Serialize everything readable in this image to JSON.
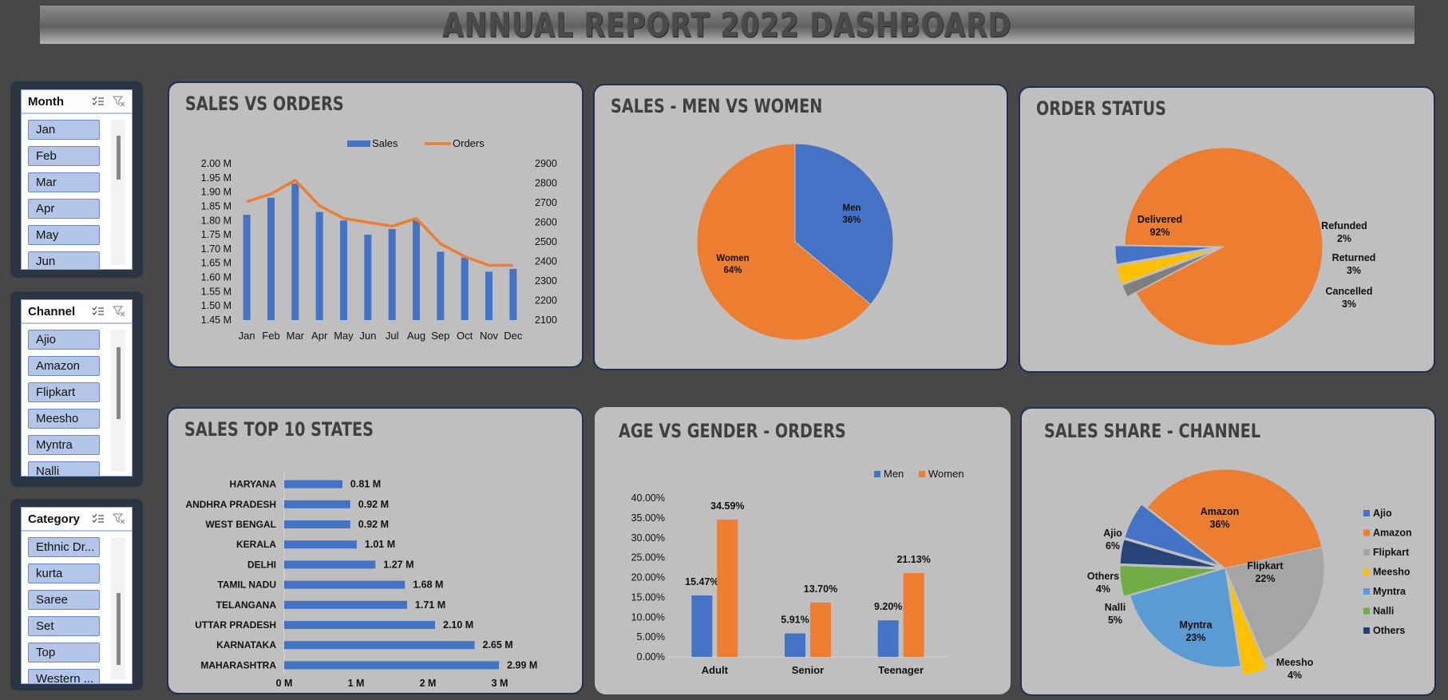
{
  "dashboard": {
    "title": "ANNUAL REPORT 2022 DASHBOARD"
  },
  "slicers": {
    "month": {
      "title": "Month",
      "items": [
        "Jan",
        "Feb",
        "Mar",
        "Apr",
        "May",
        "Jun"
      ]
    },
    "channel": {
      "title": "Channel",
      "items": [
        "Ajio",
        "Amazon",
        "Flipkart",
        "Meesho",
        "Myntra",
        "Nalli"
      ]
    },
    "category": {
      "title": "Category",
      "items": [
        "Ethnic Dr...",
        "kurta",
        "Saree",
        "Set",
        "Top",
        "Western ..."
      ]
    }
  },
  "chart_data": [
    {
      "id": "sales_vs_orders",
      "type": "bar",
      "title": "SALES VS ORDERS",
      "categories": [
        "Jan",
        "Feb",
        "Mar",
        "Apr",
        "May",
        "Jun",
        "Jul",
        "Aug",
        "Sep",
        "Oct",
        "Nov",
        "Dec"
      ],
      "series": [
        {
          "name": "Sales",
          "type": "bar",
          "axis": "left",
          "color": "#4472c4",
          "values": [
            1.82,
            1.88,
            1.93,
            1.83,
            1.8,
            1.75,
            1.77,
            1.8,
            1.69,
            1.67,
            1.62,
            1.63
          ]
        },
        {
          "name": "Orders",
          "type": "line",
          "axis": "right",
          "color": "#ed7d31",
          "values": [
            2705,
            2745,
            2815,
            2685,
            2620,
            2600,
            2580,
            2620,
            2490,
            2425,
            2380,
            2380
          ]
        }
      ],
      "ylim": [
        1.45,
        2.0
      ],
      "yticks": [
        "2.00 M",
        "1.95 M",
        "1.90 M",
        "1.85 M",
        "1.80 M",
        "1.75 M",
        "1.70 M",
        "1.65 M",
        "1.60 M",
        "1.55 M",
        "1.50 M",
        "1.45 M"
      ],
      "y2lim": [
        2100,
        2900
      ],
      "y2ticks": [
        "2900",
        "2800",
        "2700",
        "2600",
        "2500",
        "2400",
        "2300",
        "2200",
        "2100"
      ],
      "legend": "top"
    },
    {
      "id": "sales_men_women",
      "type": "pie",
      "title": "SALES - MEN VS WOMEN",
      "slices": [
        {
          "label": "Men",
          "pct": "36%",
          "value": 36,
          "color": "#4472c4"
        },
        {
          "label": "Women",
          "pct": "64%",
          "value": 64,
          "color": "#ed7d31"
        }
      ]
    },
    {
      "id": "order_status",
      "type": "pie",
      "title": "ORDER STATUS",
      "slices": [
        {
          "label": "Delivered",
          "pct": "92%",
          "value": 92,
          "color": "#ed7d31"
        },
        {
          "label": "Refunded",
          "pct": "2%",
          "value": 2,
          "color": "#7f7f7f"
        },
        {
          "label": "Returned",
          "pct": "3%",
          "value": 3,
          "color": "#ffc000"
        },
        {
          "label": "Cancelled",
          "pct": "3%",
          "value": 3,
          "color": "#4472c4"
        }
      ]
    },
    {
      "id": "sales_top_states",
      "type": "bar",
      "orientation": "horizontal",
      "title": "SALES TOP 10 STATES",
      "categories": [
        "HARYANA",
        "ANDHRA PRADESH",
        "WEST BENGAL",
        "KERALA",
        "DELHI",
        "TAMIL NADU",
        "TELANGANA",
        "UTTAR PRADESH",
        "KARNATAKA",
        "MAHARASHTRA"
      ],
      "values": [
        0.81,
        0.92,
        0.92,
        1.01,
        1.27,
        1.68,
        1.71,
        2.1,
        2.65,
        2.99
      ],
      "labels": [
        "0.81 M",
        "0.92 M",
        "0.92 M",
        "1.01 M",
        "1.27 M",
        "1.68 M",
        "1.71 M",
        "2.10 M",
        "2.65 M",
        "2.99 M"
      ],
      "xlim": [
        0,
        3
      ],
      "xticks": [
        "0 M",
        "1 M",
        "2 M",
        "3 M"
      ],
      "color": "#4472c4"
    },
    {
      "id": "age_vs_gender",
      "type": "bar",
      "title": "AGE VS GENDER - ORDERS",
      "categories": [
        "Adult",
        "Senior",
        "Teenager"
      ],
      "series": [
        {
          "name": "Men",
          "color": "#4472c4",
          "values": [
            15.47,
            5.91,
            9.2
          ],
          "labels": [
            "15.47%",
            "5.91%",
            "9.20%"
          ]
        },
        {
          "name": "Women",
          "color": "#ed7d31",
          "values": [
            34.59,
            13.7,
            21.13
          ],
          "labels": [
            "34.59%",
            "13.70%",
            "21.13%"
          ]
        }
      ],
      "ylim": [
        0,
        40
      ],
      "yticks": [
        "40.00%",
        "35.00%",
        "30.00%",
        "25.00%",
        "20.00%",
        "15.00%",
        "10.00%",
        "5.00%",
        "0.00%"
      ],
      "legend": "top-right"
    },
    {
      "id": "sales_share_channel",
      "type": "pie",
      "title": "SALES SHARE - CHANNEL",
      "slices": [
        {
          "label": "Amazon",
          "pct": "36%",
          "value": 36,
          "color": "#ed7d31"
        },
        {
          "label": "Flipkart",
          "pct": "22%",
          "value": 22,
          "color": "#a5a5a5"
        },
        {
          "label": "Meesho",
          "pct": "4%",
          "value": 4,
          "color": "#ffc000"
        },
        {
          "label": "Myntra",
          "pct": "23%",
          "value": 23,
          "color": "#5b9bd5"
        },
        {
          "label": "Nalli",
          "pct": "5%",
          "value": 5,
          "color": "#70ad47"
        },
        {
          "label": "Others",
          "pct": "4%",
          "value": 4,
          "color": "#264478"
        },
        {
          "label": "Ajio",
          "pct": "6%",
          "value": 6,
          "color": "#4472c4"
        }
      ],
      "legend": {
        "placement": "right",
        "items": [
          {
            "label": "Ajio",
            "color": "#4472c4"
          },
          {
            "label": "Amazon",
            "color": "#ed7d31"
          },
          {
            "label": "Flipkart",
            "color": "#a5a5a5"
          },
          {
            "label": "Meesho",
            "color": "#ffc000"
          },
          {
            "label": "Myntra",
            "color": "#5b9bd5"
          },
          {
            "label": "Nalli",
            "color": "#70ad47"
          },
          {
            "label": "Others",
            "color": "#264478"
          }
        ]
      }
    }
  ]
}
